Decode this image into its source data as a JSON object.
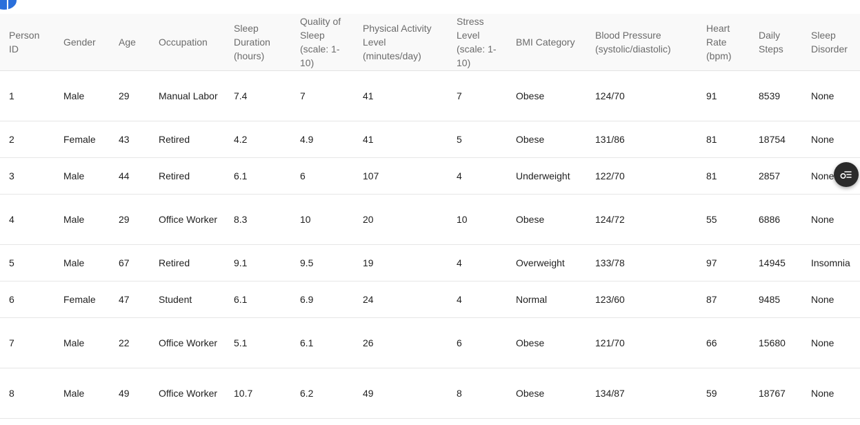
{
  "table": {
    "headers": [
      "Person ID",
      "Gender",
      "Age",
      "Occupation",
      "Sleep Duration (hours)",
      "Quality of Sleep (scale: 1-10)",
      "Physical Activity Level (minutes/day)",
      "Stress Level (scale: 1-10)",
      "BMI Category",
      "Blood Pressure (systolic/diastolic)",
      "Heart Rate (bpm)",
      "Daily Steps",
      "Sleep Disorder"
    ],
    "rows": [
      [
        "1",
        "Male",
        "29",
        "Manual Labor",
        "7.4",
        "7",
        "41",
        "7",
        "Obese",
        "124/70",
        "91",
        "8539",
        "None"
      ],
      [
        "2",
        "Female",
        "43",
        "Retired",
        "4.2",
        "4.9",
        "41",
        "5",
        "Obese",
        "131/86",
        "81",
        "18754",
        "None"
      ],
      [
        "3",
        "Male",
        "44",
        "Retired",
        "6.1",
        "6",
        "107",
        "4",
        "Underweight",
        "122/70",
        "81",
        "2857",
        "None"
      ],
      [
        "4",
        "Male",
        "29",
        "Office Worker",
        "8.3",
        "10",
        "20",
        "10",
        "Obese",
        "124/72",
        "55",
        "6886",
        "None"
      ],
      [
        "5",
        "Male",
        "67",
        "Retired",
        "9.1",
        "9.5",
        "19",
        "4",
        "Overweight",
        "133/78",
        "97",
        "14945",
        "Insomnia"
      ],
      [
        "6",
        "Female",
        "47",
        "Student",
        "6.1",
        "6.9",
        "24",
        "4",
        "Normal",
        "123/60",
        "87",
        "9485",
        "None"
      ],
      [
        "7",
        "Male",
        "22",
        "Office Worker",
        "5.1",
        "6.1",
        "26",
        "6",
        "Obese",
        "121/70",
        "66",
        "15680",
        "None"
      ],
      [
        "8",
        "Male",
        "49",
        "Office Worker",
        "10.7",
        "6.2",
        "49",
        "8",
        "Obese",
        "134/87",
        "59",
        "18767",
        "None"
      ]
    ]
  },
  "icons": {
    "corner": "info-badge-icon",
    "floating_button": "filter-options-icon"
  },
  "colors": {
    "header_bg": "#f9f9f9",
    "header_text": "#6b6b6b",
    "badge": "#2a6fdb",
    "float_button": "#2b2b2b"
  }
}
